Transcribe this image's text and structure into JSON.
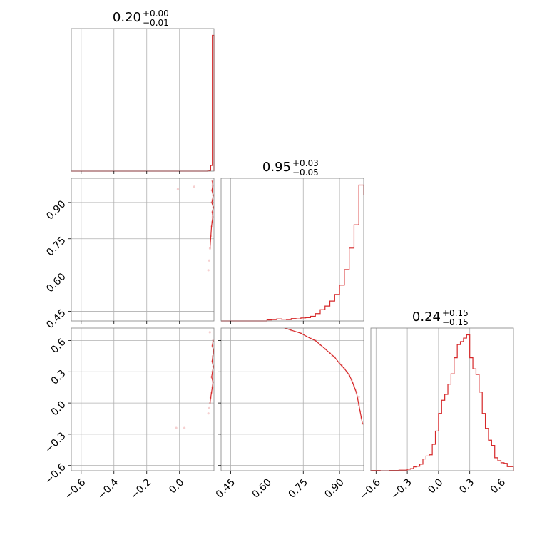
{
  "colors": {
    "series": "#d62728",
    "grid": "#b0b0b0",
    "frame": "#808080"
  },
  "chart_data": {
    "type": "corner",
    "grid": true,
    "parameters": [
      {
        "range": [
          -0.66,
          0.21
        ],
        "ticks": [
          -0.6,
          -0.4,
          -0.2,
          0.0
        ],
        "tick_labels": [
          "−0.6",
          "−0.4",
          "−0.2",
          "0.0"
        ],
        "title": {
          "median": "0.20",
          "plus": "+0.00",
          "minus": "−0.01"
        }
      },
      {
        "range": [
          0.41,
          1.0
        ],
        "ticks": [
          0.45,
          0.6,
          0.75,
          0.9
        ],
        "tick_labels": [
          "0.45",
          "0.60",
          "0.75",
          "0.90"
        ],
        "title": {
          "median": "0.95",
          "plus": "+0.03",
          "minus": "−0.05"
        }
      },
      {
        "range": [
          -0.65,
          0.72
        ],
        "ticks": [
          -0.6,
          -0.3,
          0.0,
          0.3,
          0.6
        ],
        "tick_labels": [
          "−0.6",
          "−0.3",
          "0.0",
          "0.3",
          "0.6"
        ],
        "title": {
          "median": "0.24",
          "plus": "+0.15",
          "minus": "−0.15"
        }
      }
    ],
    "histograms": [
      {
        "param": 0,
        "type": "step",
        "bins": [
          0.17,
          0.18,
          0.19,
          0.2,
          0.21
        ],
        "counts": [
          1,
          4,
          42,
          1000
        ]
      },
      {
        "param": 1,
        "type": "step",
        "bins": [
          0.6,
          0.62,
          0.64,
          0.66,
          0.68,
          0.7,
          0.72,
          0.74,
          0.76,
          0.78,
          0.8,
          0.82,
          0.84,
          0.86,
          0.88,
          0.9,
          0.92,
          0.94,
          0.96,
          0.98,
          1.0
        ],
        "counts": [
          3,
          4,
          6,
          5,
          4,
          7,
          6,
          9,
          10,
          14,
          22,
          34,
          45,
          60,
          80,
          108,
          155,
          220,
          290,
          410,
          380
        ]
      },
      {
        "param": 2,
        "type": "step",
        "bins": [
          -0.65,
          -0.56,
          -0.47,
          -0.38,
          -0.3,
          -0.27,
          -0.24,
          -0.21,
          -0.18,
          -0.15,
          -0.12,
          -0.09,
          -0.06,
          -0.03,
          0.0,
          0.03,
          0.06,
          0.09,
          0.12,
          0.15,
          0.18,
          0.21,
          0.24,
          0.27,
          0.3,
          0.33,
          0.36,
          0.39,
          0.42,
          0.45,
          0.48,
          0.51,
          0.54,
          0.57,
          0.6,
          0.63,
          0.66,
          0.72
        ],
        "counts": [
          1,
          0,
          1,
          2,
          5,
          7,
          13,
          15,
          22,
          40,
          50,
          54,
          90,
          135,
          195,
          240,
          260,
          295,
          330,
          385,
          430,
          440,
          452,
          463,
          385,
          347,
          328,
          268,
          195,
          144,
          104,
          86,
          44,
          34,
          27,
          25,
          14
        ]
      }
    ],
    "scatter": [
      {
        "x_param": 0,
        "y_param": 1,
        "type": "2d-density",
        "points": [
          [
            0.2,
            0.99
          ],
          [
            0.203,
            0.97
          ],
          [
            0.198,
            0.95
          ],
          [
            0.205,
            0.93
          ],
          [
            0.201,
            0.91
          ],
          [
            0.197,
            0.9
          ],
          [
            0.206,
            0.88
          ],
          [
            0.2,
            0.86
          ],
          [
            0.203,
            0.84
          ],
          [
            0.199,
            0.82
          ],
          [
            0.195,
            0.8
          ],
          [
            0.191,
            0.76
          ],
          [
            0.186,
            0.71
          ],
          [
            0.181,
            0.66
          ],
          [
            0.176,
            0.62
          ],
          [
            0.09,
            0.965
          ],
          [
            -0.01,
            0.955
          ]
        ]
      },
      {
        "x_param": 0,
        "y_param": 2,
        "type": "2d-density",
        "points": [
          [
            0.205,
            0.6
          ],
          [
            0.2,
            0.55
          ],
          [
            0.208,
            0.5
          ],
          [
            0.203,
            0.45
          ],
          [
            0.199,
            0.4
          ],
          [
            0.206,
            0.35
          ],
          [
            0.201,
            0.3
          ],
          [
            0.196,
            0.25
          ],
          [
            0.204,
            0.2
          ],
          [
            0.2,
            0.15
          ],
          [
            0.195,
            0.1
          ],
          [
            0.19,
            0.05
          ],
          [
            0.186,
            0.0
          ],
          [
            0.181,
            -0.05
          ],
          [
            0.176,
            -0.1
          ],
          [
            0.185,
            0.68
          ],
          [
            0.03,
            -0.24
          ],
          [
            -0.02,
            -0.24
          ]
        ]
      },
      {
        "x_param": 1,
        "y_param": 2,
        "type": "2d-density",
        "points": [
          [
            0.66,
            0.73
          ],
          [
            0.7,
            0.7
          ],
          [
            0.74,
            0.67
          ],
          [
            0.78,
            0.62
          ],
          [
            0.8,
            0.6
          ],
          [
            0.82,
            0.56
          ],
          [
            0.84,
            0.52
          ],
          [
            0.86,
            0.48
          ],
          [
            0.88,
            0.44
          ],
          [
            0.9,
            0.38
          ],
          [
            0.92,
            0.33
          ],
          [
            0.94,
            0.27
          ],
          [
            0.95,
            0.22
          ],
          [
            0.96,
            0.16
          ],
          [
            0.97,
            0.1
          ],
          [
            0.975,
            0.04
          ],
          [
            0.98,
            -0.02
          ],
          [
            0.985,
            -0.08
          ],
          [
            0.99,
            -0.14
          ],
          [
            0.995,
            -0.2
          ],
          [
            0.87,
            0.45
          ],
          [
            0.91,
            0.36
          ],
          [
            0.93,
            0.3
          ],
          [
            0.955,
            0.19
          ],
          [
            0.965,
            0.13
          ],
          [
            0.98,
            0.06
          ]
        ]
      }
    ]
  }
}
